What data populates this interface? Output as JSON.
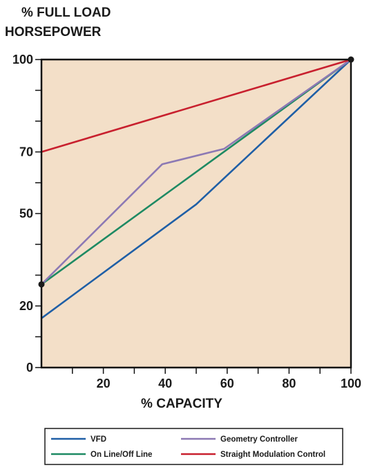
{
  "chart_data": {
    "type": "line",
    "title_line1": "% FULL LOAD",
    "title_line2": "HORSEPOWER",
    "xlabel": "% CAPACITY",
    "ylabel": "% FULL LOAD HORSEPOWER",
    "xlim": [
      0,
      100
    ],
    "ylim": [
      0,
      100
    ],
    "x_ticks": [
      20,
      40,
      60,
      80,
      100
    ],
    "x_minor_ticks": [
      10,
      30,
      50,
      70,
      90
    ],
    "y_tick_labels": [
      0,
      20,
      50,
      70,
      100
    ],
    "y_ticks_all": [
      0,
      10,
      20,
      30,
      40,
      50,
      60,
      70,
      80,
      90,
      100
    ],
    "grid": false,
    "background": "#f3dfc8",
    "legend_placement": "bottom",
    "series": [
      {
        "name": "VFD",
        "color": "#1f5fa6",
        "x": [
          0,
          50,
          100
        ],
        "y": [
          16,
          53,
          100
        ]
      },
      {
        "name": "On Line/Off Line",
        "color": "#1e8a63",
        "x": [
          0,
          100
        ],
        "y": [
          27,
          100
        ]
      },
      {
        "name": "Geometry Controller",
        "color": "#8c79b4",
        "x": [
          0,
          39,
          59,
          100
        ],
        "y": [
          27,
          66,
          71,
          100
        ]
      },
      {
        "name": "Straight Modulation Control",
        "color": "#c8202e",
        "x": [
          0,
          100
        ],
        "y": [
          70,
          100
        ]
      }
    ],
    "markers": [
      {
        "x": 0,
        "y": 27
      },
      {
        "x": 100,
        "y": 100
      }
    ]
  }
}
